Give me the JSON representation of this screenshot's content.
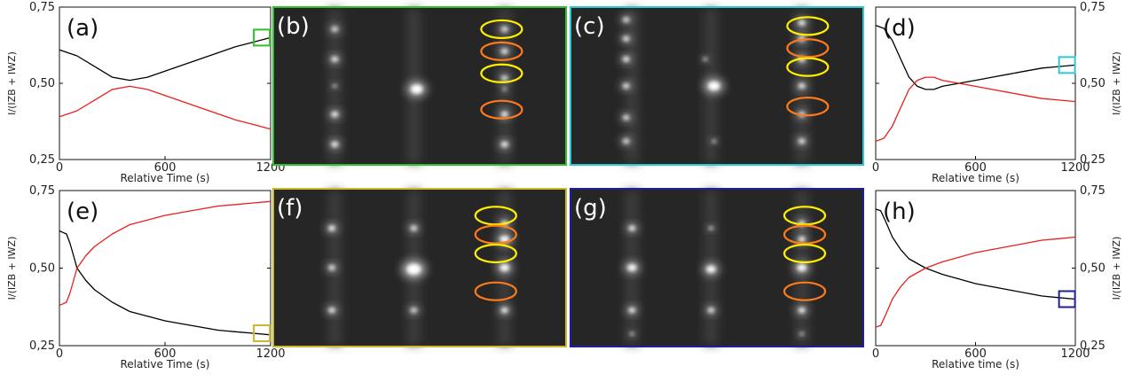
{
  "colors": {
    "black_series": "#000000",
    "red_series": "#e8201c",
    "green_frame": "#2fbf2f",
    "cyan_frame": "#2ec7d6",
    "yellow_frame": "#c9b92b",
    "blue_frame": "#1f1f9e",
    "ellipse_yellow": "#ffee00",
    "ellipse_orange": "#ff7a1a"
  },
  "chart_data": [
    {
      "panel": "(a)",
      "type": "line",
      "xlabel": "Relative Time (s)",
      "ylabel": "I/(IZB + IWZ)",
      "ylabel_side": "left",
      "xlim": [
        0,
        1200
      ],
      "ylim": [
        0.25,
        0.75
      ],
      "xticks": [
        "0",
        "600",
        "1200"
      ],
      "yticks": [
        "0,25",
        "0,50",
        "0,75"
      ],
      "series": [
        {
          "color": "black",
          "x": [
            0,
            100,
            200,
            300,
            400,
            500,
            600,
            700,
            800,
            900,
            1000,
            1100,
            1200
          ],
          "y": [
            0.61,
            0.59,
            0.555,
            0.52,
            0.51,
            0.52,
            0.54,
            0.56,
            0.58,
            0.6,
            0.62,
            0.635,
            0.65
          ]
        },
        {
          "color": "red",
          "x": [
            0,
            100,
            200,
            300,
            400,
            500,
            600,
            700,
            800,
            900,
            1000,
            1100,
            1200
          ],
          "y": [
            0.39,
            0.41,
            0.445,
            0.48,
            0.49,
            0.48,
            0.46,
            0.44,
            0.42,
            0.4,
            0.38,
            0.365,
            0.35
          ]
        }
      ],
      "marker": {
        "x": 1150,
        "y": 0.65,
        "frame": "green"
      }
    },
    {
      "panel": "(d)",
      "type": "line",
      "xlabel": "Relative time (s)",
      "ylabel": "I/(IZB + IWZ)",
      "ylabel_side": "right",
      "xlim": [
        0,
        1200
      ],
      "ylim": [
        0.25,
        0.75
      ],
      "xticks": [
        "0",
        "600",
        "1200"
      ],
      "yticks": [
        "0,25",
        "0,50",
        "0,75"
      ],
      "series": [
        {
          "color": "black",
          "x": [
            0,
            50,
            100,
            150,
            200,
            250,
            300,
            350,
            400,
            500,
            600,
            700,
            800,
            900,
            1000,
            1100,
            1200
          ],
          "y": [
            0.69,
            0.68,
            0.64,
            0.58,
            0.52,
            0.49,
            0.48,
            0.48,
            0.49,
            0.5,
            0.51,
            0.52,
            0.53,
            0.54,
            0.55,
            0.555,
            0.56
          ]
        },
        {
          "color": "red",
          "x": [
            0,
            50,
            100,
            150,
            200,
            250,
            300,
            350,
            400,
            500,
            600,
            700,
            800,
            900,
            1000,
            1100,
            1200
          ],
          "y": [
            0.31,
            0.32,
            0.36,
            0.42,
            0.48,
            0.51,
            0.52,
            0.52,
            0.51,
            0.5,
            0.49,
            0.48,
            0.47,
            0.46,
            0.45,
            0.445,
            0.44
          ]
        }
      ],
      "marker": {
        "x": 1150,
        "y": 0.56,
        "frame": "cyan"
      }
    },
    {
      "panel": "(e)",
      "type": "line",
      "xlabel": "Relative Time (s)",
      "ylabel": "I/(IZB + IWZ)",
      "ylabel_side": "left",
      "xlim": [
        0,
        1200
      ],
      "ylim": [
        0.25,
        0.75
      ],
      "xticks": [
        "0",
        "600",
        "1200"
      ],
      "yticks": [
        "0,25",
        "0,50",
        "0,75"
      ],
      "series": [
        {
          "color": "black",
          "x": [
            0,
            20,
            40,
            60,
            80,
            100,
            150,
            200,
            300,
            400,
            500,
            600,
            700,
            800,
            900,
            1000,
            1100,
            1200
          ],
          "y": [
            0.62,
            0.615,
            0.61,
            0.58,
            0.54,
            0.5,
            0.46,
            0.43,
            0.39,
            0.36,
            0.345,
            0.33,
            0.32,
            0.31,
            0.3,
            0.295,
            0.29,
            0.285
          ]
        },
        {
          "color": "red",
          "x": [
            0,
            20,
            40,
            60,
            80,
            100,
            150,
            200,
            300,
            400,
            500,
            600,
            700,
            800,
            900,
            1000,
            1100,
            1200
          ],
          "y": [
            0.38,
            0.385,
            0.39,
            0.42,
            0.46,
            0.5,
            0.54,
            0.57,
            0.61,
            0.64,
            0.655,
            0.67,
            0.68,
            0.69,
            0.7,
            0.705,
            0.71,
            0.715
          ]
        }
      ],
      "marker": {
        "x": 1150,
        "y": 0.29,
        "frame": "yellow"
      }
    },
    {
      "panel": "(h)",
      "type": "line",
      "xlabel": "Relative time (s)",
      "ylabel": "I/(IZB + IWZ)",
      "ylabel_side": "right",
      "xlim": [
        0,
        1200
      ],
      "ylim": [
        0.25,
        0.75
      ],
      "xticks": [
        "0",
        "600",
        "1200"
      ],
      "yticks": [
        "0,25",
        "0,50",
        "0,75"
      ],
      "series": [
        {
          "color": "black",
          "x": [
            0,
            30,
            60,
            100,
            150,
            200,
            300,
            400,
            500,
            600,
            700,
            800,
            900,
            1000,
            1100,
            1200
          ],
          "y": [
            0.69,
            0.685,
            0.65,
            0.6,
            0.56,
            0.53,
            0.5,
            0.48,
            0.465,
            0.45,
            0.44,
            0.43,
            0.42,
            0.41,
            0.405,
            0.4
          ]
        },
        {
          "color": "red",
          "x": [
            0,
            30,
            60,
            100,
            150,
            200,
            300,
            400,
            500,
            600,
            700,
            800,
            900,
            1000,
            1100,
            1200
          ],
          "y": [
            0.31,
            0.315,
            0.35,
            0.4,
            0.44,
            0.47,
            0.5,
            0.52,
            0.535,
            0.55,
            0.56,
            0.57,
            0.58,
            0.59,
            0.595,
            0.6
          ]
        }
      ],
      "marker": {
        "x": 1150,
        "y": 0.4,
        "frame": "blue"
      }
    }
  ],
  "images": [
    {
      "panel": "(b)",
      "frame": "green"
    },
    {
      "panel": "(c)",
      "frame": "cyan"
    },
    {
      "panel": "(f)",
      "frame": "yellow"
    },
    {
      "panel": "(g)",
      "frame": "blue"
    }
  ]
}
